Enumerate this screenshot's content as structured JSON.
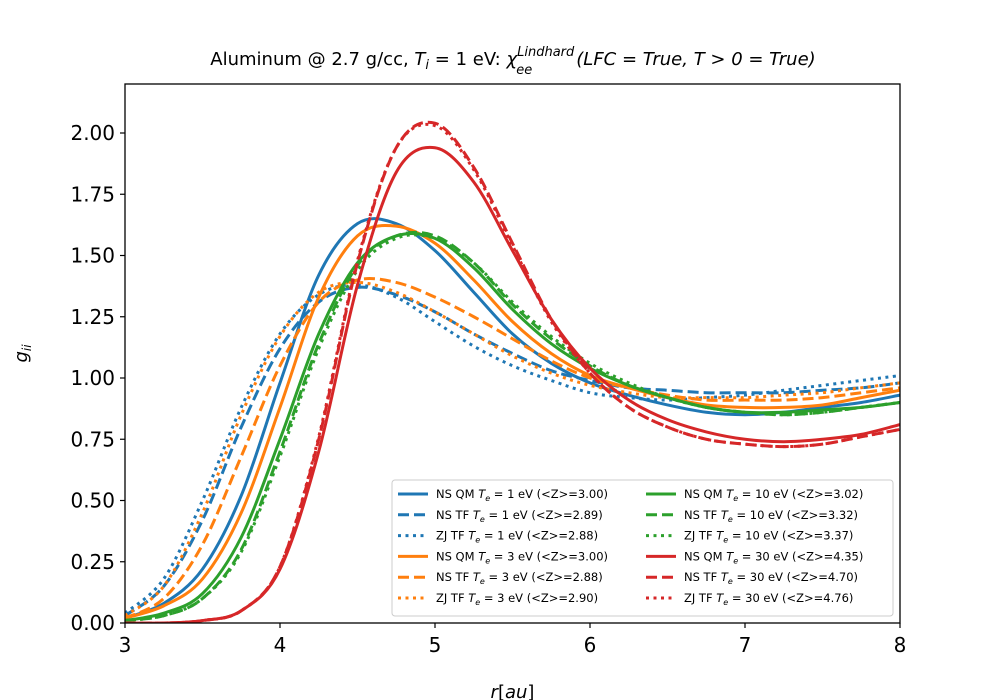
{
  "chart_data": {
    "type": "line",
    "title": "Aluminum @ 2.7 g/cc, T_i = 1 eV: χ_ee^Lindhard(LFC = True, T > 0 = True)",
    "title_parts": {
      "prefix": "Aluminum @ 2.7 g/cc, ",
      "ti_var": "T",
      "ti_sub": "i",
      "ti_value": " = 1 eV: ",
      "chi": "χ",
      "chi_sup": "Lindhard",
      "chi_sub": "ee",
      "args": "(LFC = True, T > 0 = True)"
    },
    "xlabel": "r[au]",
    "ylabel": "g_ii",
    "ylabel_parts": {
      "var": "g",
      "sub": "ii"
    },
    "xlim": [
      3,
      8
    ],
    "ylim": [
      0,
      2.2
    ],
    "xticks": [
      "3",
      "4",
      "5",
      "6",
      "7",
      "8"
    ],
    "yticks": [
      "0.00",
      "0.25",
      "0.50",
      "0.75",
      "1.00",
      "1.25",
      "1.50",
      "1.75",
      "2.00"
    ],
    "grid": false,
    "legend_position": "lower-right",
    "x": [
      3.0,
      3.25,
      3.5,
      3.75,
      4.0,
      4.25,
      4.5,
      4.75,
      5.0,
      5.25,
      5.5,
      5.75,
      6.0,
      6.25,
      6.5,
      6.75,
      7.0,
      7.25,
      7.5,
      7.75,
      8.0
    ],
    "series": [
      {
        "name": "NS QM T_e = 1 eV (<Z>=3.00)",
        "te": "1",
        "z": "3.00",
        "model": "NS QM",
        "color": "#1f77b4",
        "dash": "solid",
        "values": [
          0.02,
          0.08,
          0.22,
          0.52,
          0.98,
          1.42,
          1.63,
          1.63,
          1.52,
          1.35,
          1.18,
          1.06,
          0.98,
          0.93,
          0.89,
          0.86,
          0.85,
          0.86,
          0.88,
          0.9,
          0.93
        ]
      },
      {
        "name": "NS TF T_e = 1 eV (<Z>=2.89)",
        "te": "1",
        "z": "2.89",
        "model": "NS TF",
        "color": "#1f77b4",
        "dash": "dashed",
        "values": [
          0.03,
          0.15,
          0.42,
          0.8,
          1.12,
          1.31,
          1.37,
          1.34,
          1.27,
          1.18,
          1.1,
          1.03,
          0.99,
          0.96,
          0.95,
          0.94,
          0.94,
          0.94,
          0.95,
          0.96,
          0.98
        ]
      },
      {
        "name": "ZJ TF T_e = 1 eV (<Z>=2.88)",
        "te": "1",
        "z": "2.88",
        "model": "ZJ TF",
        "color": "#1f77b4",
        "dash": "dotted",
        "values": [
          0.04,
          0.18,
          0.5,
          0.88,
          1.18,
          1.34,
          1.38,
          1.33,
          1.23,
          1.13,
          1.05,
          0.99,
          0.94,
          0.92,
          0.91,
          0.92,
          0.93,
          0.95,
          0.97,
          0.99,
          1.01
        ]
      },
      {
        "name": "NS QM T_e = 3 eV (<Z>=3.00)",
        "te": "3",
        "z": "3.00",
        "model": "NS QM",
        "color": "#ff7f0e",
        "dash": "solid",
        "values": [
          0.02,
          0.07,
          0.18,
          0.45,
          0.88,
          1.33,
          1.58,
          1.62,
          1.55,
          1.4,
          1.23,
          1.1,
          1.01,
          0.96,
          0.92,
          0.89,
          0.88,
          0.88,
          0.89,
          0.92,
          0.95
        ]
      },
      {
        "name": "NS TF T_e = 3 eV (<Z>=2.88)",
        "te": "3",
        "z": "2.88",
        "model": "NS TF",
        "color": "#ff7f0e",
        "dash": "dashed",
        "values": [
          0.02,
          0.1,
          0.32,
          0.68,
          1.05,
          1.31,
          1.4,
          1.39,
          1.33,
          1.25,
          1.16,
          1.07,
          1.0,
          0.96,
          0.93,
          0.91,
          0.91,
          0.91,
          0.92,
          0.94,
          0.96
        ]
      },
      {
        "name": "ZJ TF T_e = 3 eV (<Z>=2.90)",
        "te": "3",
        "z": "2.90",
        "model": "ZJ TF",
        "color": "#ff7f0e",
        "dash": "dotted",
        "values": [
          0.03,
          0.15,
          0.45,
          0.85,
          1.17,
          1.35,
          1.39,
          1.35,
          1.27,
          1.18,
          1.09,
          1.02,
          0.97,
          0.94,
          0.92,
          0.92,
          0.92,
          0.93,
          0.94,
          0.96,
          0.98
        ]
      },
      {
        "name": "NS QM T_e = 10 eV (<Z>=3.02)",
        "te": "10",
        "z": "3.02",
        "model": "NS QM",
        "color": "#2ca02c",
        "dash": "solid",
        "values": [
          0.01,
          0.04,
          0.12,
          0.35,
          0.75,
          1.18,
          1.47,
          1.58,
          1.57,
          1.45,
          1.28,
          1.14,
          1.04,
          0.97,
          0.92,
          0.88,
          0.86,
          0.86,
          0.87,
          0.88,
          0.9
        ]
      },
      {
        "name": "NS TF T_e = 10 eV (<Z>=3.32)",
        "te": "10",
        "z": "3.32",
        "model": "NS TF",
        "color": "#2ca02c",
        "dash": "dashed",
        "values": [
          0.01,
          0.03,
          0.1,
          0.3,
          0.7,
          1.14,
          1.46,
          1.58,
          1.58,
          1.47,
          1.3,
          1.16,
          1.05,
          0.97,
          0.92,
          0.88,
          0.86,
          0.85,
          0.86,
          0.88,
          0.9
        ]
      },
      {
        "name": "ZJ TF T_e = 10 eV (<Z>=3.37)",
        "te": "10",
        "z": "3.37",
        "model": "ZJ TF",
        "color": "#2ca02c",
        "dash": "dotted",
        "values": [
          0.01,
          0.03,
          0.1,
          0.29,
          0.68,
          1.12,
          1.44,
          1.57,
          1.57,
          1.47,
          1.31,
          1.17,
          1.06,
          0.98,
          0.92,
          0.88,
          0.86,
          0.85,
          0.86,
          0.88,
          0.9
        ]
      },
      {
        "name": "NS QM T_e = 30 eV (<Z>=4.35)",
        "te": "30",
        "z": "4.35",
        "model": "NS QM",
        "color": "#d62728",
        "dash": "solid",
        "values": [
          0.0,
          0.0,
          0.01,
          0.05,
          0.22,
          0.7,
          1.38,
          1.84,
          1.94,
          1.8,
          1.52,
          1.24,
          1.04,
          0.91,
          0.83,
          0.78,
          0.75,
          0.74,
          0.75,
          0.77,
          0.81
        ]
      },
      {
        "name": "NS TF T_e = 30 eV (<Z>=4.70)",
        "te": "30",
        "z": "4.70",
        "model": "NS TF",
        "color": "#d62728",
        "dash": "dashed",
        "values": [
          0.0,
          0.0,
          0.01,
          0.05,
          0.23,
          0.75,
          1.47,
          1.94,
          2.04,
          1.86,
          1.55,
          1.24,
          1.02,
          0.88,
          0.8,
          0.75,
          0.73,
          0.72,
          0.73,
          0.76,
          0.79
        ]
      },
      {
        "name": "ZJ TF T_e = 30 eV (<Z>=4.76)",
        "te": "30",
        "z": "4.76",
        "model": "ZJ TF",
        "color": "#d62728",
        "dash": "dotted",
        "values": [
          0.0,
          0.0,
          0.01,
          0.05,
          0.23,
          0.76,
          1.48,
          1.94,
          2.03,
          1.85,
          1.54,
          1.23,
          1.02,
          0.88,
          0.8,
          0.75,
          0.73,
          0.72,
          0.73,
          0.76,
          0.79
        ]
      }
    ]
  }
}
